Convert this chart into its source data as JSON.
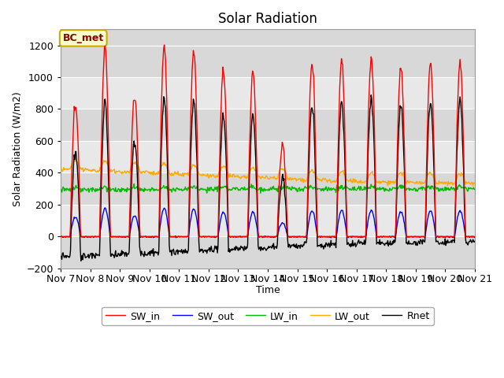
{
  "title": "Solar Radiation",
  "ylabel": "Solar Radiation (W/m2)",
  "xlabel": "Time",
  "annotation": "BC_met",
  "ylim": [
    -200,
    1300
  ],
  "yticks": [
    -200,
    0,
    200,
    400,
    600,
    800,
    1000,
    1200
  ],
  "num_days": 14,
  "start_day": 7,
  "colors": {
    "SW_in": "#ff0000",
    "SW_out": "#0000ff",
    "LW_in": "#00bb00",
    "LW_out": "#ffaa00",
    "Rnet": "#000000"
  },
  "plot_bg": "#d8d8d8",
  "fig_bg": "#ffffff",
  "band_colors": [
    "#d8d8d8",
    "#e8e8e8"
  ],
  "series_labels": [
    "SW_in",
    "SW_out",
    "LW_in",
    "LW_out",
    "Rnet"
  ]
}
